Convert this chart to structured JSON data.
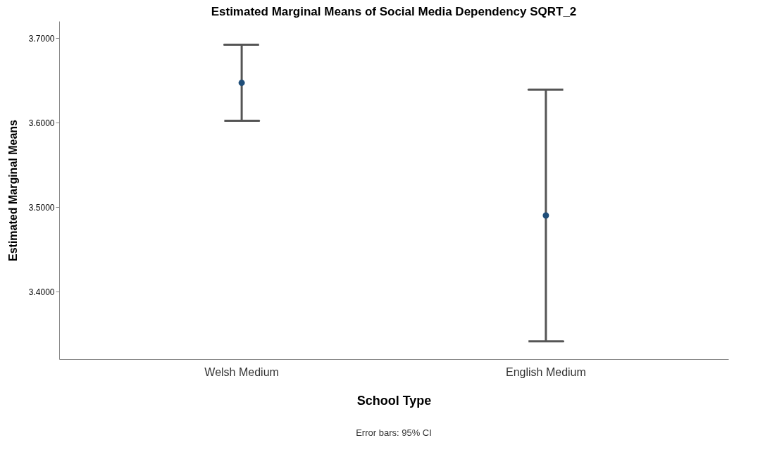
{
  "chart_data": {
    "type": "scatter",
    "title": "Estimated Marginal Means of Social Media Dependency SQRT_2",
    "xlabel": "School Type",
    "ylabel": "Estimated Marginal Means",
    "categories": [
      "Welsh Medium",
      "English Medium"
    ],
    "series": [
      {
        "color": "#1f4e79",
        "values": [
          3.647,
          3.49
        ],
        "errors": [
          [
            3.602,
            3.692
          ],
          [
            3.341,
            3.639
          ]
        ]
      }
    ],
    "ylim": [
      3.32,
      3.72
    ],
    "yticks": [
      {
        "value": 3.4,
        "label": "3.4000"
      },
      {
        "value": 3.5,
        "label": "3.5000"
      },
      {
        "value": 3.6,
        "label": "3.6000"
      },
      {
        "value": 3.7,
        "label": "3.7000"
      }
    ],
    "marker": "circle",
    "grid": false,
    "annotations": [
      "Error bars: 95% CI"
    ]
  }
}
